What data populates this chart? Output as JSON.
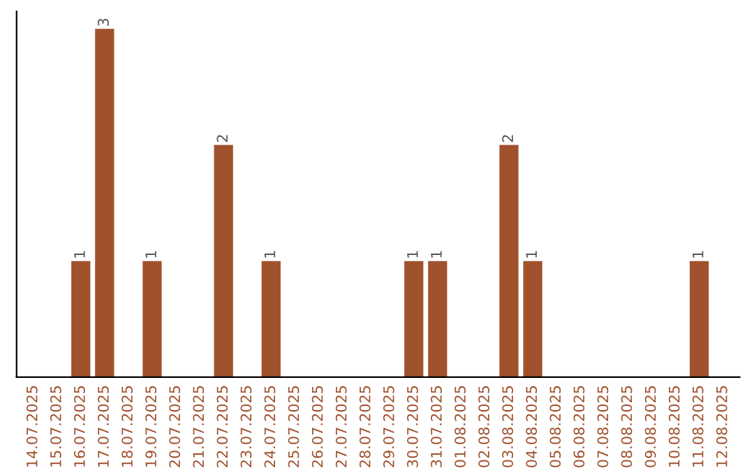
{
  "chart_data": {
    "type": "bar",
    "categories": [
      "14.07.2025",
      "15.07.2025",
      "16.07.2025",
      "17.07.2025",
      "18.07.2025",
      "19.07.2025",
      "20.07.2025",
      "21.07.2025",
      "22.07.2025",
      "23.07.2025",
      "24.07.2025",
      "25.07.2025",
      "26.07.2025",
      "27.07.2025",
      "28.07.2025",
      "29.07.2025",
      "30.07.2025",
      "31.07.2025",
      "01.08.2025",
      "02.08.2025",
      "03.08.2025",
      "04.08.2025",
      "05.08.2025",
      "06.08.2025",
      "07.08.2025",
      "08.08.2025",
      "09.08.2025",
      "10.08.2025",
      "11.08.2025",
      "12.08.2025"
    ],
    "values": [
      0,
      0,
      1,
      3,
      0,
      1,
      0,
      0,
      2,
      0,
      1,
      0,
      0,
      0,
      0,
      0,
      1,
      1,
      0,
      0,
      2,
      1,
      0,
      0,
      0,
      0,
      0,
      0,
      1,
      0
    ],
    "value_labels": [
      null,
      null,
      "1",
      "3",
      null,
      "1",
      null,
      null,
      "2",
      null,
      "1",
      null,
      null,
      null,
      null,
      null,
      "1",
      "1",
      null,
      null,
      "2",
      "1",
      null,
      null,
      null,
      null,
      null,
      null,
      "1",
      null
    ],
    "color": "#a0522d",
    "tick_labels": "x",
    "grid": false,
    "legend": false
  }
}
